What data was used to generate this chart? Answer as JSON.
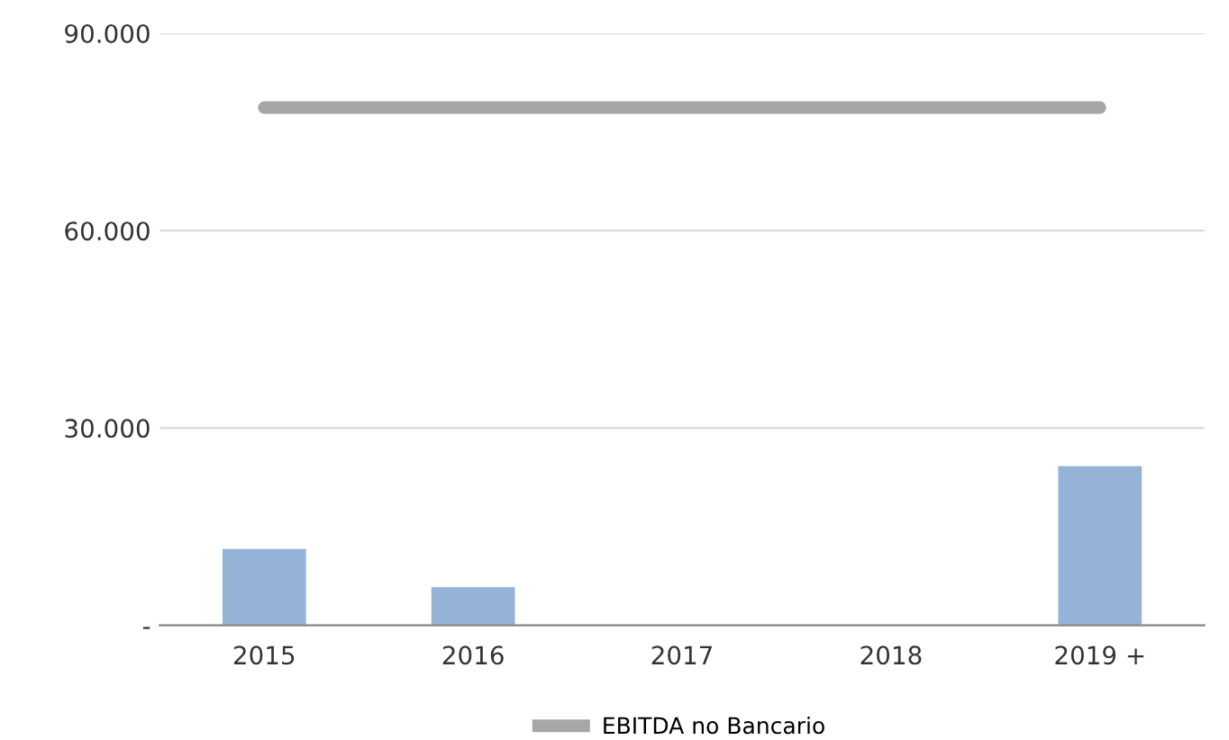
{
  "chart_data": {
    "type": "bar",
    "categories": [
      "2015",
      "2016",
      "2017",
      "2018",
      "2019 +"
    ],
    "series": [
      {
        "color": "#95b3d7",
        "values": [
          11600,
          5800,
          0,
          0,
          24200
        ]
      },
      {
        "type": "line",
        "name": "EBITDA no Bancario",
        "color": "#a6a6a6",
        "values": [
          78700,
          78700,
          78700,
          78700,
          78700
        ]
      }
    ],
    "ylim": [
      0,
      90000
    ],
    "yticks": [
      {
        "value": 0,
        "label": "-"
      },
      {
        "value": 30000,
        "label": "30.000"
      },
      {
        "value": 60000,
        "label": "60.000"
      },
      {
        "value": 90000,
        "label": "90.000"
      }
    ],
    "grid": "y",
    "legend": "bottom",
    "marker": "none",
    "line_style": "solid"
  }
}
